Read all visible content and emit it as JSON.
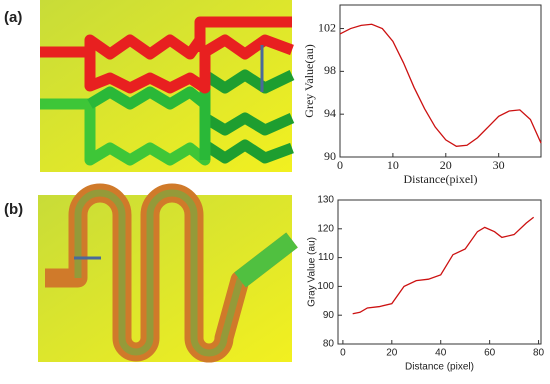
{
  "panel_labels": [
    "(a)",
    "(b)"
  ],
  "chart_data": [
    {
      "type": "line",
      "xlabel": "Distance(pixel)",
      "ylabel": "Grey Value(au)",
      "x": [
        0,
        2,
        4,
        6,
        8,
        10,
        12,
        14,
        16,
        18,
        20,
        22,
        24,
        26,
        28,
        30,
        32,
        34,
        36,
        38
      ],
      "series": [
        {
          "color": "#cc1111",
          "values": [
            101.5,
            102,
            102.3,
            102.4,
            102,
            100.8,
            98.8,
            96.5,
            94.5,
            92.8,
            91.6,
            91,
            91.1,
            91.8,
            92.8,
            93.8,
            94.3,
            94.4,
            93.5,
            91.3
          ]
        }
      ],
      "xlim": [
        0,
        38
      ],
      "xticks": [
        0,
        10,
        20,
        30
      ],
      "ylim": [
        90,
        104.2
      ],
      "yticks": [
        90,
        94,
        98,
        102
      ]
    },
    {
      "type": "line",
      "xlabel": "Distance (pixel)",
      "ylabel": "Gray Value (au)",
      "x": [
        4,
        7,
        10,
        15,
        20,
        25,
        30,
        35,
        40,
        45,
        50,
        55,
        58,
        62,
        65,
        70,
        75,
        78
      ],
      "series": [
        {
          "color": "#cc1111",
          "values": [
            90.5,
            91,
            92.5,
            93,
            94,
            100,
            102,
            102.5,
            104,
            111,
            113,
            119,
            120.5,
            119,
            117,
            118,
            122,
            124
          ]
        }
      ],
      "xlim": [
        -2,
        81
      ],
      "xticks": [
        0,
        20,
        40,
        60,
        80
      ],
      "ylim": [
        80,
        130
      ],
      "yticks": [
        80,
        90,
        100,
        110,
        120,
        130
      ]
    }
  ]
}
